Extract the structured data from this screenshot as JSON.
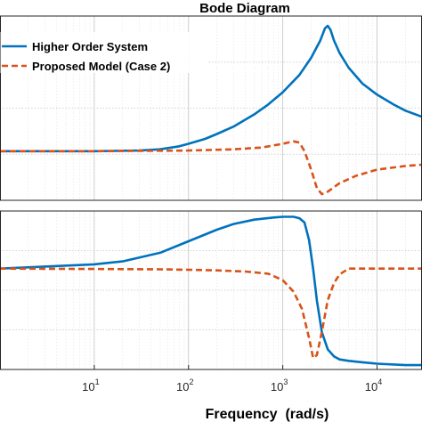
{
  "chart_data": {
    "type": "line",
    "title": "Bode Diagram",
    "xlabel": "Frequency  (rad/s)",
    "x_scale": "log",
    "xlim": [
      1,
      30000
    ],
    "x_ticks": [
      {
        "value": 10,
        "base": "10",
        "exp": "1"
      },
      {
        "value": 100,
        "base": "10",
        "exp": "2"
      },
      {
        "value": 1000,
        "base": "10",
        "exp": "3"
      },
      {
        "value": 10000,
        "base": "10",
        "exp": "4"
      }
    ],
    "grid": true,
    "legend": {
      "position": "top-left"
    },
    "colors": {
      "higher": "#0072BD",
      "proposed": "#D95319"
    },
    "panels": [
      {
        "name": "magnitude",
        "ylim": [
          -4,
          11
        ],
        "series": [
          {
            "name": "Higher Order System",
            "style": "solid",
            "x": [
              1,
              10,
              30,
              50,
              80,
              100,
              150,
              200,
              300,
              500,
              700,
              1000,
              1500,
              2000,
              2500,
              2800,
              3000,
              3200,
              3500,
              4000,
              5000,
              7000,
              10000,
              15000,
              20000,
              30000
            ],
            "y": [
              0,
              0,
              0.05,
              0.15,
              0.4,
              0.6,
              1.0,
              1.4,
              2.0,
              3.0,
              3.8,
              4.8,
              6.2,
              7.6,
              9.0,
              10.0,
              10.2,
              9.9,
              9.0,
              8.0,
              6.8,
              5.5,
              4.6,
              3.8,
              3.3,
              2.8
            ]
          },
          {
            "name": "Proposed Model (Case 2)",
            "style": "dashed",
            "x": [
              1,
              10,
              100,
              300,
              600,
              1000,
              1300,
              1500,
              1700,
              2000,
              2300,
              2600,
              3000,
              4000,
              6000,
              10000,
              20000,
              30000
            ],
            "y": [
              0,
              0,
              0.05,
              0.15,
              0.3,
              0.6,
              0.8,
              0.7,
              0.0,
              -1.5,
              -3.0,
              -3.5,
              -3.3,
              -2.6,
              -2.0,
              -1.5,
              -1.2,
              -1.1
            ]
          }
        ]
      },
      {
        "name": "phase",
        "ylim": [
          -70,
          40
        ],
        "series": [
          {
            "name": "Higher Order System",
            "style": "solid",
            "x": [
              1,
              10,
              20,
              50,
              100,
              200,
              300,
              500,
              800,
              1000,
              1300,
              1500,
              1700,
              1900,
              2100,
              2300,
              2600,
              3000,
              3500,
              4000,
              5000,
              7000,
              10000,
              20000,
              30000
            ],
            "y": [
              0,
              3,
              5,
              11,
              19,
              27,
              31,
              34,
              35.5,
              36,
              36,
              35,
              32,
              20,
              0,
              -22,
              -44,
              -56,
              -61,
              -63,
              -64,
              -65,
              -66,
              -67,
              -67
            ]
          },
          {
            "name": "Proposed Model (Case 2)",
            "style": "dashed",
            "x": [
              1,
              10,
              50,
              100,
              200,
              400,
              700,
              1000,
              1300,
              1600,
              1900,
              2100,
              2300,
              2600,
              3000,
              3500,
              4000,
              5000,
              10000,
              30000
            ],
            "y": [
              0,
              -0.2,
              -0.5,
              -0.8,
              -1.2,
              -2,
              -3.5,
              -8,
              -16,
              -28,
              -48,
              -62,
              -60,
              -44,
              -22,
              -10,
              -4,
              0,
              0,
              0
            ]
          }
        ]
      }
    ]
  }
}
